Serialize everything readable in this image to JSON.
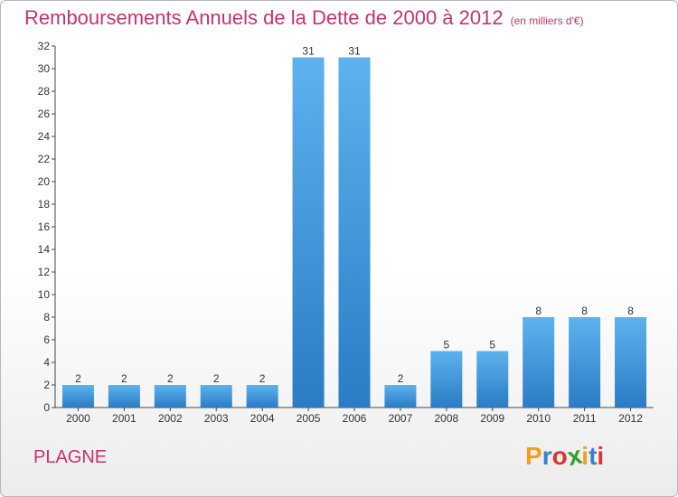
{
  "chart_data": {
    "type": "bar",
    "title": "Remboursements Annuels de la Dette de 2000 à 2012",
    "subtitle": "(en milliers d'€)",
    "categories": [
      "2000",
      "2001",
      "2002",
      "2003",
      "2004",
      "2005",
      "2006",
      "2007",
      "2008",
      "2009",
      "2010",
      "2011",
      "2012"
    ],
    "values": [
      2,
      2,
      2,
      2,
      2,
      31,
      31,
      2,
      5,
      5,
      8,
      8,
      8
    ],
    "ylim": [
      0,
      32
    ],
    "ytick_step": 2,
    "grid": false,
    "legend": "none",
    "bar_color": "#4a9fe0"
  },
  "footer": {
    "place": "PLAGNE",
    "logo_letters": [
      "P",
      "r",
      "o",
      "x",
      "i",
      "t",
      "i"
    ],
    "logo_colors": [
      "#f0a020",
      "#3a7fd0",
      "#e03030",
      "#30a030",
      "#f0a020",
      "#3a7fd0",
      "#e03030"
    ]
  }
}
